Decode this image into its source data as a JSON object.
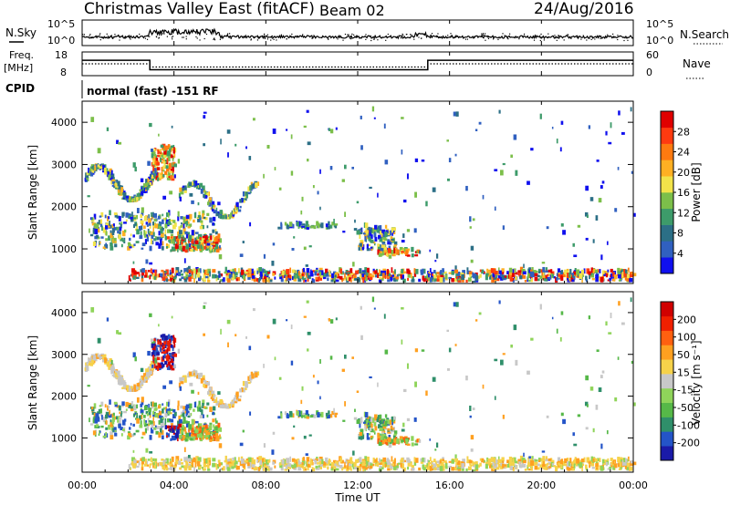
{
  "header": {
    "title": "Christmas Valley East (fitACF)",
    "beam": "Beam 02",
    "date": "24/Aug/2016"
  },
  "strips": {
    "nsky_label": "N.Sky",
    "nsky_ticks": [
      "10^5",
      "10^0"
    ],
    "nsearch_label": "N.Search",
    "nsearch_ticks": [
      "10^5",
      "10^0"
    ],
    "freq_label": "Freq.",
    "freq_unit": "[MHz]",
    "freq_ticks": [
      "18",
      "8"
    ],
    "nave_label": "Nave",
    "nave_ticks": [
      "60",
      "0"
    ],
    "cpid_label": "CPID",
    "cpid_text": "normal (fast) -151 RF"
  },
  "chart_data": {
    "type": "heatmap",
    "x_ticks": [
      "00:00",
      "04:00",
      "08:00",
      "12:00",
      "16:00",
      "20:00",
      "00:00"
    ],
    "xlabel": "Time UT",
    "ylabel": "Slant Range [km]",
    "y_ticks": [
      "1000",
      "2000",
      "3000",
      "4000"
    ],
    "ylim": [
      180,
      4500
    ],
    "x_hours": [
      0,
      24
    ],
    "panels": [
      {
        "name": "power",
        "colorbar_label": "Power [dB]",
        "colorbar_ticks": [
          "28",
          "24",
          "20",
          "16",
          "12",
          "8",
          "4"
        ],
        "colors": [
          "#1010ee",
          "#3060c0",
          "#2c6f86",
          "#3d9b6a",
          "#7cbf4a",
          "#f2e34a",
          "#ffb023",
          "#ff7a10",
          "#ff3a10",
          "#e00000"
        ]
      },
      {
        "name": "velocity",
        "colorbar_label": "Velocity [m s⁻¹]",
        "colorbar_ticks": [
          "200",
          "100",
          "50",
          "15",
          "-15",
          "-50",
          "-100",
          "-200"
        ],
        "colors": [
          "#1a1aa8",
          "#2454c8",
          "#2f8f6a",
          "#56b848",
          "#8fd45a",
          "#c8c8c8",
          "#f6d24a",
          "#ffa020",
          "#ff6010",
          "#f02000",
          "#d00000"
        ]
      }
    ],
    "frequency_MHz": {
      "hours": [
        0,
        2.95,
        2.95,
        15.05,
        15.05,
        24
      ],
      "values": [
        14.5,
        14.5,
        10.5,
        10.5,
        14.5,
        14.5
      ]
    },
    "nave": {
      "hours": [
        0,
        2.95,
        2.95,
        15.05,
        15.05,
        24
      ],
      "values": [
        30,
        30,
        22,
        22,
        30,
        30
      ]
    }
  }
}
